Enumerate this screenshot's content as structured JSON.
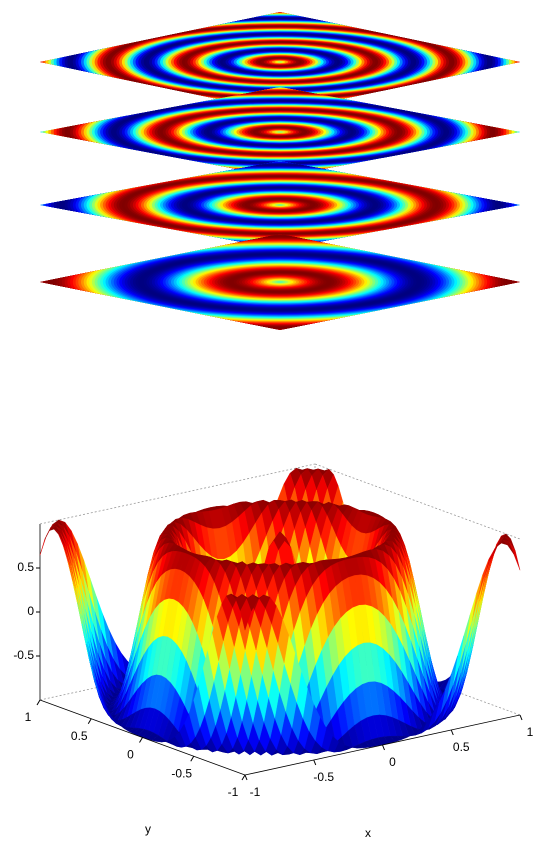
{
  "chart_data": [
    {
      "type": "slice"
    },
    {
      "type": "surface",
      "xlabel": "x",
      "ylabel": "y",
      "xlim": [
        -1,
        1
      ],
      "xticks": [
        -1,
        -0.5,
        0,
        0.5,
        1
      ],
      "ylim": [
        -1,
        1
      ],
      "yticks": [
        -1,
        -0.5,
        0,
        0.5,
        1
      ],
      "zlim": [
        -1,
        1
      ],
      "zticks": [
        -0.5,
        0,
        0.5
      ]
    }
  ]
}
